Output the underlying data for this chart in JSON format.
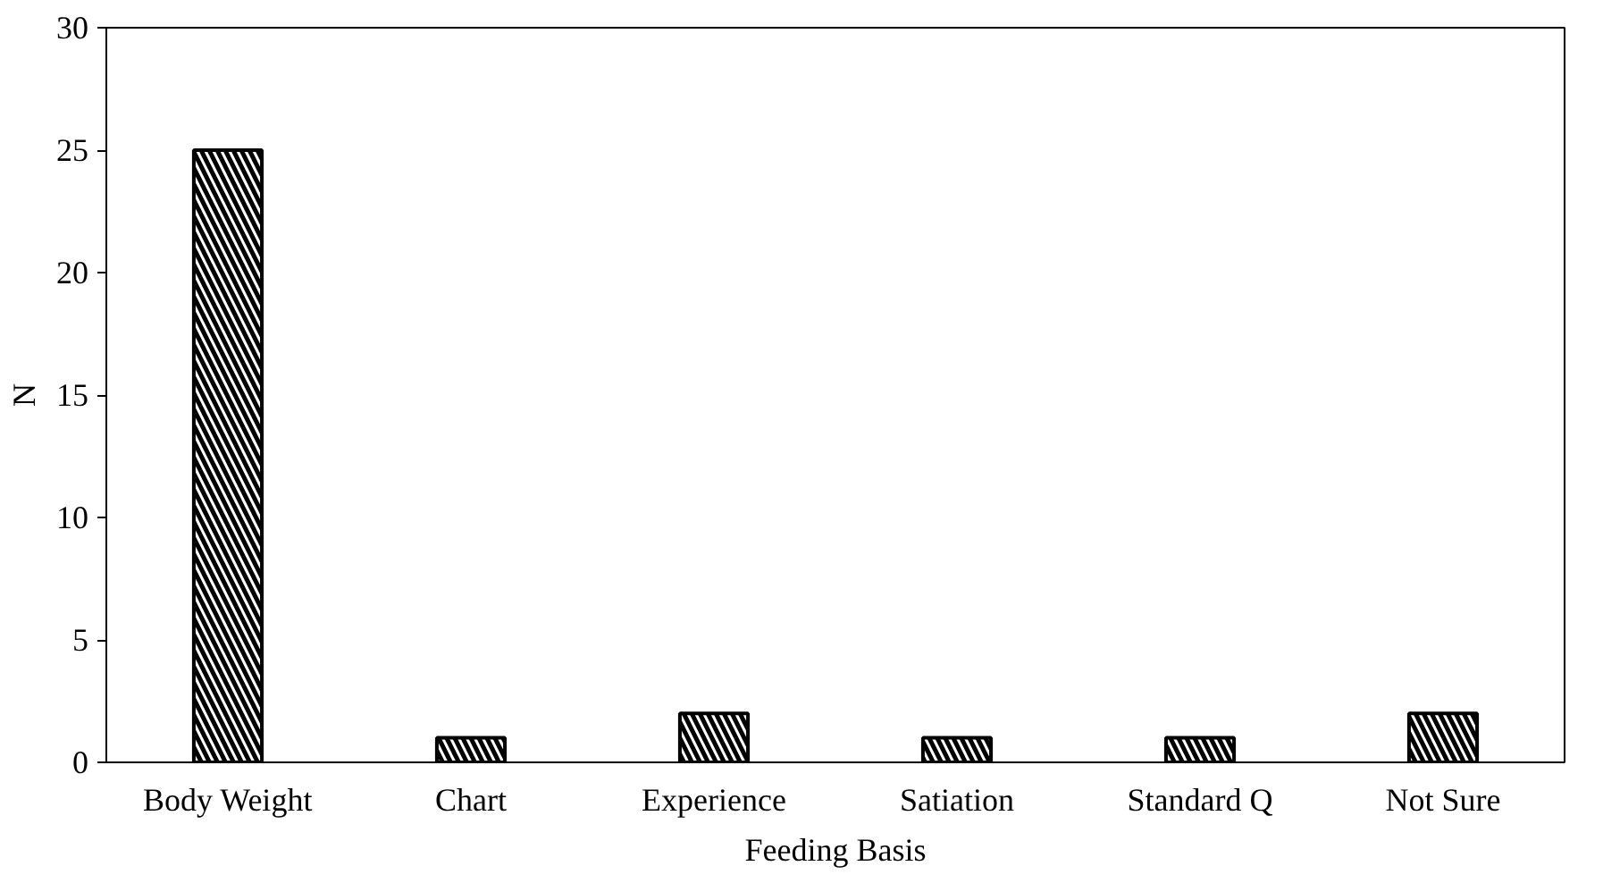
{
  "chart_data": {
    "type": "bar",
    "xlabel": "Feeding Basis",
    "ylabel": "N",
    "categories": [
      "Body Weight",
      "Chart",
      "Experience",
      "Satiation",
      "Standard Q",
      "Not Sure"
    ],
    "values": [
      25,
      1,
      2,
      1,
      1,
      2
    ],
    "color": "#000000",
    "ylim": [
      0,
      30
    ],
    "yticks": [
      0,
      5,
      10,
      15,
      20,
      25,
      30
    ],
    "grid": false
  }
}
